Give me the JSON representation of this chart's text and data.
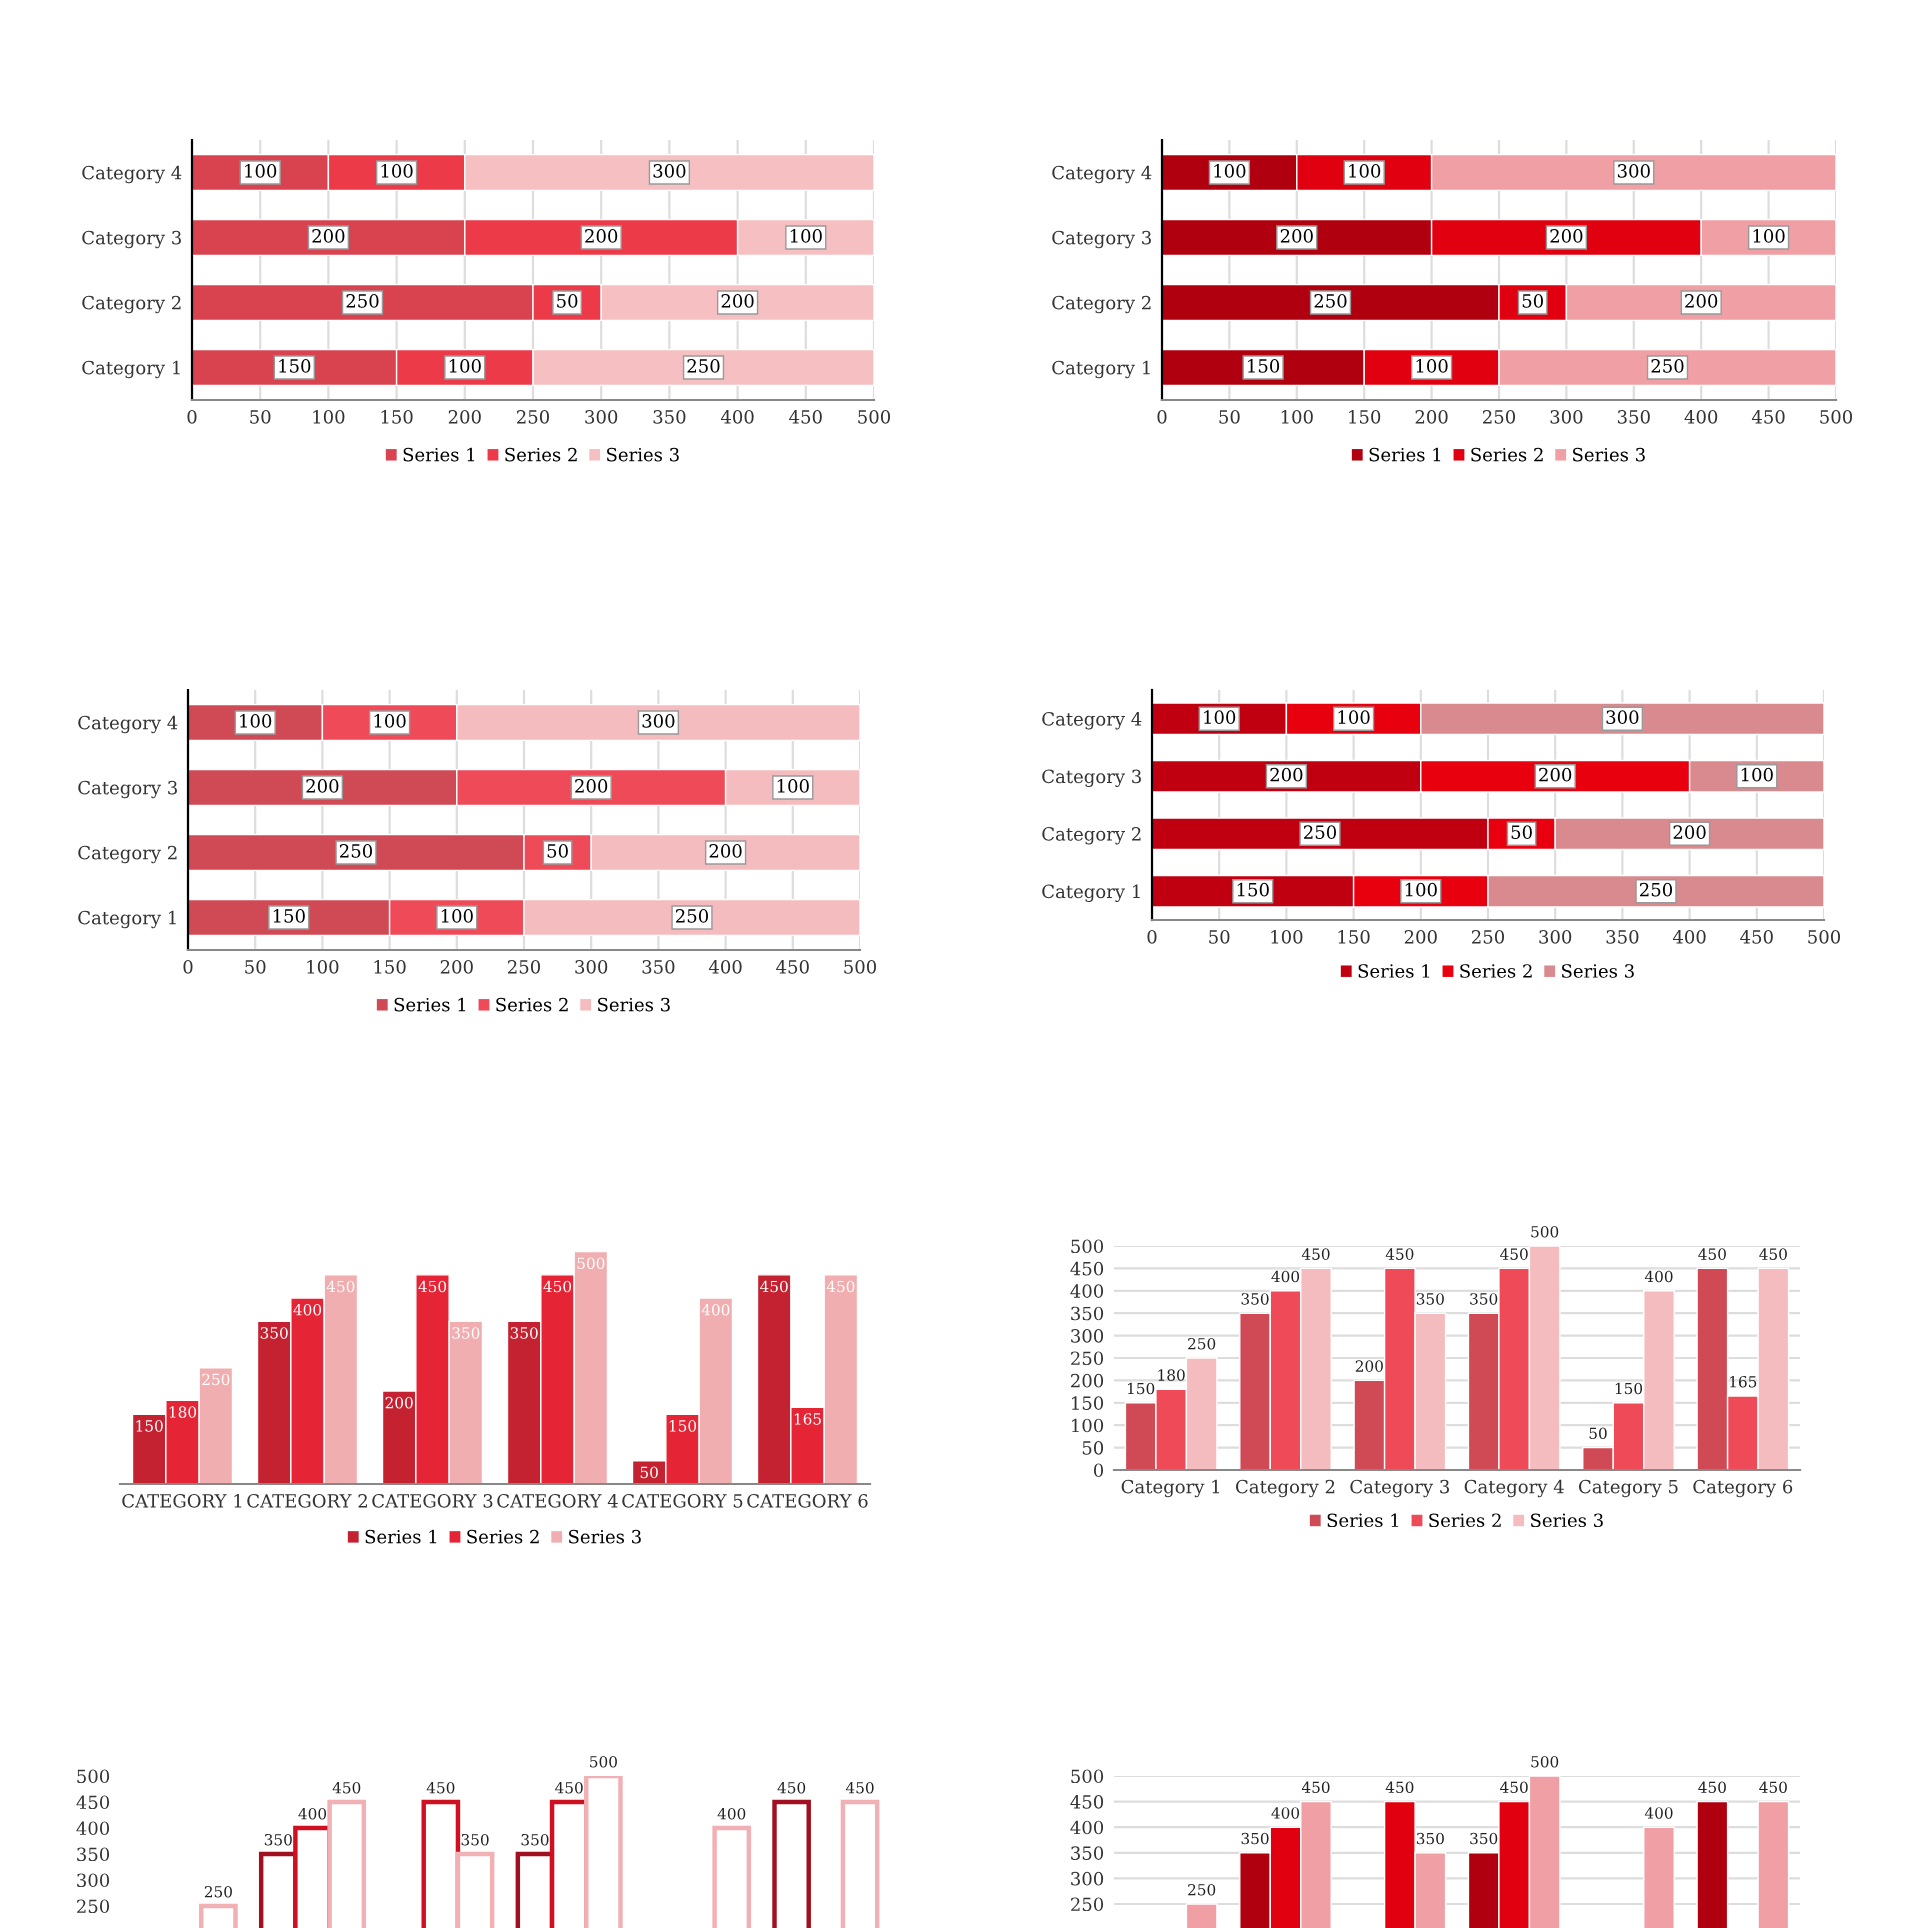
{
  "chart_data": [
    {
      "type": "bar",
      "orientation": "horizontal",
      "stacked": true,
      "categories": [
        "Category 4",
        "Category 3",
        "Category 2",
        "Category 1"
      ],
      "series": [
        {
          "name": "Series 1",
          "color": "#d9434f",
          "values": [
            100,
            200,
            250,
            150
          ]
        },
        {
          "name": "Series 2",
          "color": "#ec3a48",
          "values": [
            100,
            200,
            50,
            100
          ]
        },
        {
          "name": "Series 3",
          "color": "#f6c0c3",
          "values": [
            300,
            100,
            200,
            250
          ]
        }
      ],
      "xlim": [
        0,
        500
      ],
      "xticks": [
        0,
        50,
        100,
        150,
        200,
        250,
        300,
        350,
        400,
        450,
        500
      ],
      "grid": "x",
      "legend": "bottom",
      "data_labels": true
    },
    {
      "type": "bar",
      "orientation": "horizontal",
      "stacked": true,
      "categories": [
        "Category 4",
        "Category 3",
        "Category 2",
        "Category 1"
      ],
      "series": [
        {
          "name": "Series 1",
          "color": "#b0000f",
          "values": [
            100,
            200,
            250,
            150
          ]
        },
        {
          "name": "Series 2",
          "color": "#e0000f",
          "values": [
            100,
            200,
            50,
            100
          ]
        },
        {
          "name": "Series 3",
          "color": "#f0a0a4",
          "values": [
            300,
            100,
            200,
            250
          ]
        }
      ],
      "xlim": [
        0,
        500
      ],
      "xticks": [
        0,
        50,
        100,
        150,
        200,
        250,
        300,
        350,
        400,
        450,
        500
      ],
      "grid": "x",
      "legend": "bottom",
      "data_labels": true
    },
    {
      "type": "bar",
      "orientation": "horizontal",
      "stacked": true,
      "categories": [
        "Category 4",
        "Category 3",
        "Category 2",
        "Category 1"
      ],
      "series": [
        {
          "name": "Series 1",
          "color": "#d04a55",
          "values": [
            100,
            200,
            250,
            150
          ]
        },
        {
          "name": "Series 2",
          "color": "#ee4a58",
          "values": [
            100,
            200,
            50,
            100
          ]
        },
        {
          "name": "Series 3",
          "color": "#f4bcbe",
          "values": [
            300,
            100,
            200,
            250
          ]
        }
      ],
      "xlim": [
        0,
        500
      ],
      "xticks": [
        0,
        50,
        100,
        150,
        200,
        250,
        300,
        350,
        400,
        450,
        500
      ],
      "grid": "x",
      "legend": "bottom",
      "data_labels": true
    },
    {
      "type": "bar",
      "orientation": "horizontal",
      "stacked": true,
      "categories": [
        "Category 4",
        "Category 3",
        "Category 2",
        "Category 1"
      ],
      "series": [
        {
          "name": "Series 1",
          "color": "#c00010",
          "values": [
            100,
            200,
            250,
            150
          ]
        },
        {
          "name": "Series 2",
          "color": "#e8000f",
          "values": [
            100,
            200,
            50,
            100
          ]
        },
        {
          "name": "Series 3",
          "color": "#d98a8f",
          "values": [
            300,
            100,
            200,
            250
          ]
        }
      ],
      "xlim": [
        0,
        500
      ],
      "xticks": [
        0,
        50,
        100,
        150,
        200,
        250,
        300,
        350,
        400,
        450,
        500
      ],
      "grid": "x",
      "legend": "bottom",
      "data_labels": true
    },
    {
      "type": "bar",
      "categories": [
        "CATEGORY 1",
        "CATEGORY 2",
        "CATEGORY 3",
        "CATEGORY 4",
        "CATEGORY 5",
        "CATEGORY 6"
      ],
      "series": [
        {
          "name": "Series 1",
          "color": "#c42231",
          "values": [
            150,
            350,
            200,
            350,
            50,
            450
          ]
        },
        {
          "name": "Series 2",
          "color": "#e52535",
          "values": [
            180,
            400,
            450,
            450,
            150,
            165
          ]
        },
        {
          "name": "Series 3",
          "color": "#f0aeb0",
          "values": [
            250,
            450,
            350,
            500,
            400,
            450
          ]
        }
      ],
      "tick_labels": "x",
      "legend": "bottom",
      "data_labels": true
    },
    {
      "type": "bar",
      "categories": [
        "Category 1",
        "Category 2",
        "Category 3",
        "Category 4",
        "Category 5",
        "Category 6"
      ],
      "series": [
        {
          "name": "Series 1",
          "color": "#d04a55",
          "values": [
            150,
            350,
            200,
            350,
            50,
            450
          ]
        },
        {
          "name": "Series 2",
          "color": "#ee4a58",
          "values": [
            180,
            400,
            450,
            450,
            150,
            165
          ]
        },
        {
          "name": "Series 3",
          "color": "#f4bcbe",
          "values": [
            250,
            450,
            350,
            500,
            400,
            450
          ]
        }
      ],
      "ylim": [
        0,
        500
      ],
      "yticks": [
        0,
        50,
        100,
        150,
        200,
        250,
        300,
        350,
        400,
        450,
        500
      ],
      "grid": "y",
      "legend": "bottom",
      "data_labels": true
    },
    {
      "type": "bar",
      "categories": [
        null,
        null,
        null,
        null,
        null,
        null
      ],
      "series": [
        {
          "color": "#a01020",
          "values": [
            null,
            350,
            null,
            350,
            null,
            450
          ]
        },
        {
          "color": "#d01020",
          "values": [
            null,
            400,
            450,
            450,
            null,
            null
          ]
        },
        {
          "color": "#f0b0b4",
          "values": [
            250,
            450,
            350,
            500,
            400,
            450
          ]
        }
      ],
      "ylim": [
        0,
        500
      ],
      "yticks": [
        250,
        300,
        350,
        400,
        450,
        500
      ],
      "tick_labels": "y",
      "data_labels": true
    },
    {
      "type": "bar",
      "categories": [
        null,
        null,
        null,
        null,
        null,
        null
      ],
      "series": [
        {
          "color": "#b0000f",
          "values": [
            null,
            350,
            null,
            350,
            null,
            450
          ]
        },
        {
          "color": "#e0000f",
          "values": [
            null,
            400,
            450,
            450,
            null,
            null
          ]
        },
        {
          "color": "#f0a0a4",
          "values": [
            250,
            450,
            350,
            500,
            400,
            450
          ]
        }
      ],
      "ylim": [
        0,
        500
      ],
      "yticks": [
        250,
        300,
        350,
        400,
        450,
        500
      ],
      "grid": "y",
      "tick_labels": "y",
      "data_labels": true
    }
  ]
}
